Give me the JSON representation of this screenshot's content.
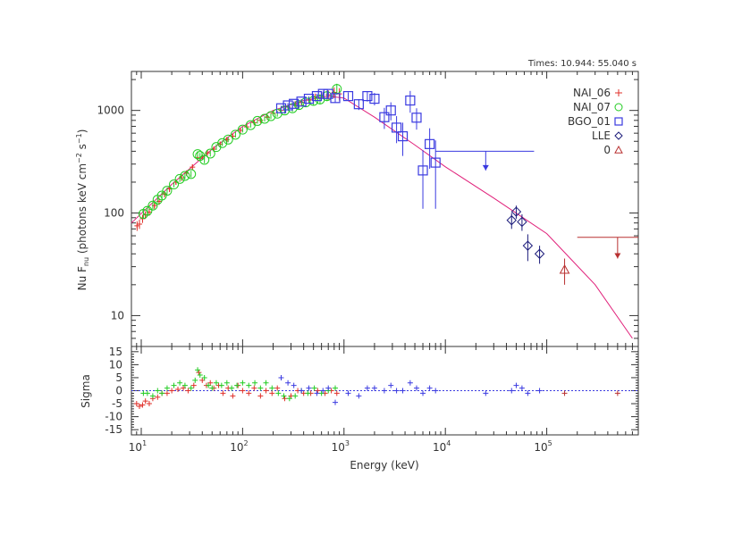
{
  "chart_data": {
    "type": "scatter",
    "time_label": "Times: 10.944: 55.040 s",
    "xlabel": "Energy (keV)",
    "xscale": "log",
    "xlim": [
      8,
      800000
    ],
    "x_ticks": [
      {
        "value": 10,
        "base": "10",
        "exp": "1"
      },
      {
        "value": 100,
        "base": "10",
        "exp": "2"
      },
      {
        "value": 1000,
        "base": "10",
        "exp": "3"
      },
      {
        "value": 10000,
        "base": "10",
        "exp": "4"
      },
      {
        "value": 100000,
        "base": "10",
        "exp": "5"
      }
    ],
    "top_panel": {
      "ylabel": {
        "prefix": "Nu F",
        "sub": "nu",
        "mid": " (photons keV cm",
        "sup1": "−2",
        "mid2": " s",
        "sup2": "−1",
        "suffix": ")"
      },
      "yscale": "log",
      "ylim": [
        5,
        2400
      ],
      "y_ticks": [
        {
          "value": 10,
          "label": "10"
        },
        {
          "value": 100,
          "label": "100"
        },
        {
          "value": 1000,
          "label": "1000"
        }
      ]
    },
    "bottom_panel": {
      "ylabel": "Sigma",
      "ylim": [
        -17,
        17
      ],
      "y_ticks": [
        -15,
        -10,
        -5,
        0,
        5,
        10,
        15
      ],
      "zero_line": true
    },
    "legend": {
      "position": "top-right",
      "items": [
        {
          "name": "NAI_06",
          "color": "#e0302a",
          "marker": "plus"
        },
        {
          "name": "NAI_07",
          "color": "#22cc22",
          "marker": "circle"
        },
        {
          "name": "BGO_01",
          "color": "#3a3ae0",
          "marker": "square"
        },
        {
          "name": "LLE",
          "color": "#1a1a7a",
          "marker": "diamond"
        },
        {
          "name": "0",
          "color": "#b83030",
          "marker": "triangle"
        }
      ]
    },
    "model": {
      "color": "#e0207a",
      "points": [
        [
          8,
          80
        ],
        [
          20,
          190
        ],
        [
          50,
          420
        ],
        [
          100,
          700
        ],
        [
          200,
          1000
        ],
        [
          400,
          1250
        ],
        [
          700,
          1380
        ],
        [
          1000,
          1320
        ],
        [
          2000,
          860
        ],
        [
          5000,
          460
        ],
        [
          10000,
          282
        ],
        [
          30000,
          140
        ],
        [
          100000,
          63
        ],
        [
          300000,
          20
        ],
        [
          700000,
          6
        ]
      ]
    },
    "series": [
      {
        "name": "NAI_06",
        "color": "#e0302a",
        "marker": "plus",
        "points": [
          {
            "x": 9.1,
            "y": 75,
            "yerr": 8
          },
          {
            "x": 9.6,
            "y": 78,
            "yerr": 8
          },
          {
            "x": 10.3,
            "y": 88,
            "yerr": 8
          },
          {
            "x": 11,
            "y": 96,
            "yerr": 8
          },
          {
            "x": 12,
            "y": 102,
            "yerr": 8
          },
          {
            "x": 13.5,
            "y": 118,
            "yerr": 9
          },
          {
            "x": 15,
            "y": 130,
            "yerr": 10
          },
          {
            "x": 17,
            "y": 152,
            "yerr": 10
          },
          {
            "x": 19,
            "y": 172,
            "yerr": 12
          },
          {
            "x": 22,
            "y": 200,
            "yerr": 12
          },
          {
            "x": 25,
            "y": 220,
            "yerr": 14
          },
          {
            "x": 28,
            "y": 245,
            "yerr": 15
          },
          {
            "x": 32,
            "y": 280,
            "yerr": 18
          },
          {
            "x": 36,
            "y": 345,
            "yerr": 20
          },
          {
            "x": 40,
            "y": 350,
            "yerr": 22
          },
          {
            "x": 45,
            "y": 385,
            "yerr": 22
          },
          {
            "x": 52,
            "y": 420,
            "yerr": 25
          },
          {
            "x": 60,
            "y": 470,
            "yerr": 25
          },
          {
            "x": 70,
            "y": 520,
            "yerr": 30
          },
          {
            "x": 80,
            "y": 560,
            "yerr": 30
          },
          {
            "x": 95,
            "y": 640,
            "yerr": 35
          },
          {
            "x": 110,
            "y": 690,
            "yerr": 35
          },
          {
            "x": 130,
            "y": 760,
            "yerr": 40
          },
          {
            "x": 150,
            "y": 800,
            "yerr": 40
          },
          {
            "x": 175,
            "y": 860,
            "yerr": 45
          },
          {
            "x": 200,
            "y": 940,
            "yerr": 50
          },
          {
            "x": 240,
            "y": 1000,
            "yerr": 60
          },
          {
            "x": 280,
            "y": 1080,
            "yerr": 70
          },
          {
            "x": 330,
            "y": 1150,
            "yerr": 80
          },
          {
            "x": 380,
            "y": 1200,
            "yerr": 90
          },
          {
            "x": 450,
            "y": 1260,
            "yerr": 100
          },
          {
            "x": 520,
            "y": 1350,
            "yerr": 110
          },
          {
            "x": 600,
            "y": 1400,
            "yerr": 120
          },
          {
            "x": 700,
            "y": 1420,
            "yerr": 150
          },
          {
            "x": 800,
            "y": 1500,
            "yerr": 180
          },
          {
            "x": 900,
            "y": 1450,
            "yerr": 200
          }
        ],
        "residuals": [
          {
            "x": 9,
            "r": -5
          },
          {
            "x": 9.6,
            "r": -6
          },
          {
            "x": 10.3,
            "r": -5.5
          },
          {
            "x": 11,
            "r": -4
          },
          {
            "x": 12,
            "r": -5
          },
          {
            "x": 13,
            "r": -3
          },
          {
            "x": 14.5,
            "r": -2.5
          },
          {
            "x": 16,
            "r": -1
          },
          {
            "x": 18,
            "r": -1
          },
          {
            "x": 20,
            "r": 0
          },
          {
            "x": 23,
            "r": 0.5
          },
          {
            "x": 26,
            "r": 1
          },
          {
            "x": 29,
            "r": 0
          },
          {
            "x": 33,
            "r": 2
          },
          {
            "x": 37,
            "r": 7
          },
          {
            "x": 40,
            "r": 4
          },
          {
            "x": 44,
            "r": 2
          },
          {
            "x": 48,
            "r": 3
          },
          {
            "x": 52,
            "r": 1
          },
          {
            "x": 58,
            "r": 2
          },
          {
            "x": 64,
            "r": -1
          },
          {
            "x": 72,
            "r": 1
          },
          {
            "x": 80,
            "r": -2
          },
          {
            "x": 90,
            "r": 2
          },
          {
            "x": 100,
            "r": 0
          },
          {
            "x": 115,
            "r": -1
          },
          {
            "x": 130,
            "r": 1
          },
          {
            "x": 150,
            "r": -2
          },
          {
            "x": 170,
            "r": 0
          },
          {
            "x": 195,
            "r": -1
          },
          {
            "x": 220,
            "r": 1
          },
          {
            "x": 260,
            "r": -3
          },
          {
            "x": 300,
            "r": -2
          },
          {
            "x": 350,
            "r": 0
          },
          {
            "x": 400,
            "r": -1
          },
          {
            "x": 470,
            "r": -1
          },
          {
            "x": 550,
            "r": 0
          },
          {
            "x": 650,
            "r": -1
          },
          {
            "x": 750,
            "r": 0
          },
          {
            "x": 850,
            "r": -1
          }
        ]
      },
      {
        "name": "NAI_07",
        "color": "#22cc22",
        "marker": "circle",
        "points": [
          {
            "x": 10.5,
            "y": 98,
            "yerr": 10
          },
          {
            "x": 11.5,
            "y": 105,
            "yerr": 10
          },
          {
            "x": 13,
            "y": 118,
            "yerr": 10
          },
          {
            "x": 14.5,
            "y": 135,
            "yerr": 10
          },
          {
            "x": 16,
            "y": 148,
            "yerr": 12
          },
          {
            "x": 18,
            "y": 165,
            "yerr": 12
          },
          {
            "x": 21,
            "y": 190,
            "yerr": 12
          },
          {
            "x": 24,
            "y": 215,
            "yerr": 14
          },
          {
            "x": 27,
            "y": 230,
            "yerr": 15
          },
          {
            "x": 31,
            "y": 240,
            "yerr": 18
          },
          {
            "x": 36,
            "y": 375,
            "yerr": 25
          },
          {
            "x": 38,
            "y": 360,
            "yerr": 25
          },
          {
            "x": 42,
            "y": 330,
            "yerr": 25
          },
          {
            "x": 48,
            "y": 380,
            "yerr": 25
          },
          {
            "x": 55,
            "y": 440,
            "yerr": 28
          },
          {
            "x": 63,
            "y": 480,
            "yerr": 30
          },
          {
            "x": 72,
            "y": 520,
            "yerr": 30
          },
          {
            "x": 85,
            "y": 580,
            "yerr": 35
          },
          {
            "x": 100,
            "y": 650,
            "yerr": 40
          },
          {
            "x": 120,
            "y": 720,
            "yerr": 40
          },
          {
            "x": 140,
            "y": 790,
            "yerr": 45
          },
          {
            "x": 165,
            "y": 830,
            "yerr": 50
          },
          {
            "x": 190,
            "y": 880,
            "yerr": 55
          },
          {
            "x": 220,
            "y": 930,
            "yerr": 60
          },
          {
            "x": 260,
            "y": 1000,
            "yerr": 70
          },
          {
            "x": 310,
            "y": 1050,
            "yerr": 80
          },
          {
            "x": 360,
            "y": 1130,
            "yerr": 90
          },
          {
            "x": 420,
            "y": 1200,
            "yerr": 100
          },
          {
            "x": 500,
            "y": 1240,
            "yerr": 110
          },
          {
            "x": 580,
            "y": 1280,
            "yerr": 130
          },
          {
            "x": 680,
            "y": 1380,
            "yerr": 150
          },
          {
            "x": 850,
            "y": 1620,
            "yerr": 200
          }
        ],
        "residuals": [
          {
            "x": 10.5,
            "r": -1
          },
          {
            "x": 11.5,
            "r": -1
          },
          {
            "x": 13,
            "r": -2
          },
          {
            "x": 14.5,
            "r": 0
          },
          {
            "x": 16,
            "r": -1
          },
          {
            "x": 18,
            "r": 1
          },
          {
            "x": 21,
            "r": 2
          },
          {
            "x": 24,
            "r": 3
          },
          {
            "x": 27,
            "r": 2
          },
          {
            "x": 31,
            "r": 1
          },
          {
            "x": 34,
            "r": 4
          },
          {
            "x": 36,
            "r": 8
          },
          {
            "x": 38,
            "r": 6
          },
          {
            "x": 42,
            "r": 5
          },
          {
            "x": 46,
            "r": 2
          },
          {
            "x": 50,
            "r": 1
          },
          {
            "x": 55,
            "r": 3
          },
          {
            "x": 62,
            "r": 2
          },
          {
            "x": 70,
            "r": 3
          },
          {
            "x": 78,
            "r": 1
          },
          {
            "x": 88,
            "r": 2
          },
          {
            "x": 100,
            "r": 3
          },
          {
            "x": 115,
            "r": 2
          },
          {
            "x": 132,
            "r": 3
          },
          {
            "x": 150,
            "r": 1
          },
          {
            "x": 170,
            "r": 3
          },
          {
            "x": 195,
            "r": 1
          },
          {
            "x": 225,
            "r": -1
          },
          {
            "x": 255,
            "r": -2
          },
          {
            "x": 290,
            "r": -3
          },
          {
            "x": 330,
            "r": -2
          },
          {
            "x": 380,
            "r": 0
          },
          {
            "x": 440,
            "r": -1
          },
          {
            "x": 510,
            "r": 1
          },
          {
            "x": 600,
            "r": -1
          },
          {
            "x": 700,
            "r": 0
          },
          {
            "x": 820,
            "r": 1
          }
        ]
      },
      {
        "name": "BGO_01",
        "color": "#3a3ae0",
        "marker": "square",
        "points": [
          {
            "x": 240,
            "y": 1050,
            "yerr": 60
          },
          {
            "x": 280,
            "y": 1120,
            "yerr": 60
          },
          {
            "x": 320,
            "y": 1160,
            "yerr": 60
          },
          {
            "x": 380,
            "y": 1220,
            "yerr": 60
          },
          {
            "x": 450,
            "y": 1300,
            "yerr": 70
          },
          {
            "x": 540,
            "y": 1380,
            "yerr": 70
          },
          {
            "x": 620,
            "y": 1450,
            "yerr": 80
          },
          {
            "x": 700,
            "y": 1450,
            "yerr": 90
          },
          {
            "x": 820,
            "y": 1320,
            "yerr": 120
          },
          {
            "x": 1100,
            "y": 1380,
            "yerr": 120
          },
          {
            "x": 1400,
            "y": 1150,
            "yerr": 140
          },
          {
            "x": 1700,
            "y": 1380,
            "yerr": 160
          },
          {
            "x": 2000,
            "y": 1300,
            "yerr": 180
          },
          {
            "x": 2500,
            "y": 860,
            "yerr": 200
          },
          {
            "x": 2900,
            "y": 1000,
            "yerr": 200
          },
          {
            "x": 3300,
            "y": 680,
            "yerr": 200
          },
          {
            "x": 3800,
            "y": 560,
            "yerr": 200
          },
          {
            "x": 4500,
            "y": 1250,
            "yerr": 300
          },
          {
            "x": 5200,
            "y": 850,
            "yerr": 200
          },
          {
            "x": 6000,
            "y": 260,
            "yerr": 150
          },
          {
            "x": 7000,
            "y": 470,
            "yerr": 200
          },
          {
            "x": 8000,
            "y": 310,
            "yerr": 200
          }
        ],
        "upper_limit": {
          "x": 25000,
          "y": 400,
          "xmin": 8000,
          "xmax": 75000,
          "arrow_to": 260
        },
        "residuals": [
          {
            "x": 240,
            "r": 5
          },
          {
            "x": 280,
            "r": 3
          },
          {
            "x": 320,
            "r": 2
          },
          {
            "x": 380,
            "r": 0
          },
          {
            "x": 450,
            "r": 1
          },
          {
            "x": 540,
            "r": -1
          },
          {
            "x": 620,
            "r": 0
          },
          {
            "x": 700,
            "r": 1
          },
          {
            "x": 820,
            "r": -4.5
          },
          {
            "x": 1100,
            "r": -1
          },
          {
            "x": 1400,
            "r": -2
          },
          {
            "x": 1700,
            "r": 1
          },
          {
            "x": 2000,
            "r": 1
          },
          {
            "x": 2500,
            "r": 0
          },
          {
            "x": 2900,
            "r": 2
          },
          {
            "x": 3300,
            "r": 0
          },
          {
            "x": 3800,
            "r": 0
          },
          {
            "x": 4500,
            "r": 3
          },
          {
            "x": 5200,
            "r": 1
          },
          {
            "x": 6000,
            "r": -1
          },
          {
            "x": 7000,
            "r": 1
          },
          {
            "x": 8000,
            "r": 0
          },
          {
            "x": 25000,
            "r": -1
          },
          {
            "x": 45000,
            "r": 0
          },
          {
            "x": 50000,
            "r": 2
          },
          {
            "x": 57000,
            "r": 1
          },
          {
            "x": 65000,
            "r": -1
          },
          {
            "x": 85000,
            "r": 0
          }
        ]
      },
      {
        "name": "LLE",
        "color": "#1a1a7a",
        "marker": "diamond",
        "points": [
          {
            "x": 45000,
            "y": 85,
            "yerr": 15
          },
          {
            "x": 50000,
            "y": 103,
            "yerr": 15
          },
          {
            "x": 57000,
            "y": 82,
            "yerr": 15
          },
          {
            "x": 65000,
            "y": 48,
            "yerr": 14
          },
          {
            "x": 85000,
            "y": 40,
            "yerr": 8
          }
        ]
      },
      {
        "name": "0",
        "color": "#b83030",
        "marker": "triangle",
        "points": [
          {
            "x": 150000,
            "y": 28,
            "yerr": 8
          }
        ],
        "upper_limit": {
          "x": 500000,
          "y": 58,
          "xmin": 200000,
          "xmax": 800000,
          "arrow_to": 36
        },
        "residuals": [
          {
            "x": 150000,
            "r": -1
          },
          {
            "x": 500000,
            "r": -1
          }
        ]
      }
    ]
  }
}
